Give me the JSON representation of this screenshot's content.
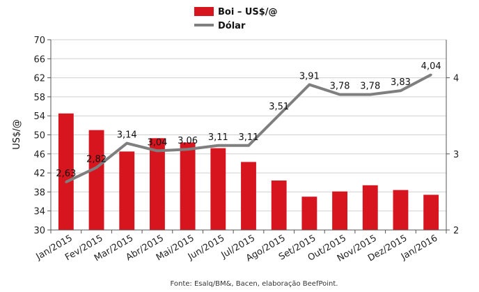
{
  "chart_data": {
    "type": "bar+line",
    "categories": [
      "Jan/2015",
      "Fev/2015",
      "Mar/2015",
      "Abr/2015",
      "Mai/2015",
      "Jun/2015",
      "Jul/2015",
      "Ago/2015",
      "Set/2015",
      "Out/2015",
      "Nov/2015",
      "Dez/2015",
      "Jan/2016"
    ],
    "series": [
      {
        "name": "Boi – US$/@",
        "type": "bar",
        "axis": "left",
        "color": "#d7151f",
        "values": [
          54.5,
          51.0,
          46.5,
          49.3,
          48.4,
          47.2,
          44.3,
          40.4,
          37.0,
          38.1,
          39.4,
          38.4,
          37.4
        ]
      },
      {
        "name": "Dólar",
        "type": "line",
        "axis": "right",
        "color": "#7f7f7f",
        "values": [
          2.63,
          2.82,
          3.14,
          3.04,
          3.06,
          3.11,
          3.11,
          3.51,
          3.91,
          3.78,
          3.78,
          3.83,
          4.04
        ],
        "labels": [
          "2,63",
          "2,82",
          "3,14",
          "3,04",
          "3,06",
          "3,11",
          "3,11",
          "3,51",
          "3,91",
          "3,78",
          "3,78",
          "3,83",
          "4,04"
        ]
      }
    ],
    "ylabel": "US$/@",
    "y_left": {
      "range": [
        30,
        70
      ],
      "ticks": [
        "30",
        "34",
        "38",
        "42",
        "46",
        "50",
        "54",
        "58",
        "62",
        "66",
        "70"
      ]
    },
    "y_right": {
      "range": [
        2,
        4.5
      ],
      "ticks": [
        "2",
        "3",
        "4"
      ]
    },
    "grid": true,
    "legend_position": "top-center",
    "source": "Fonte: Esalq/BM&, Bacen, elaboração BeefPoint."
  }
}
